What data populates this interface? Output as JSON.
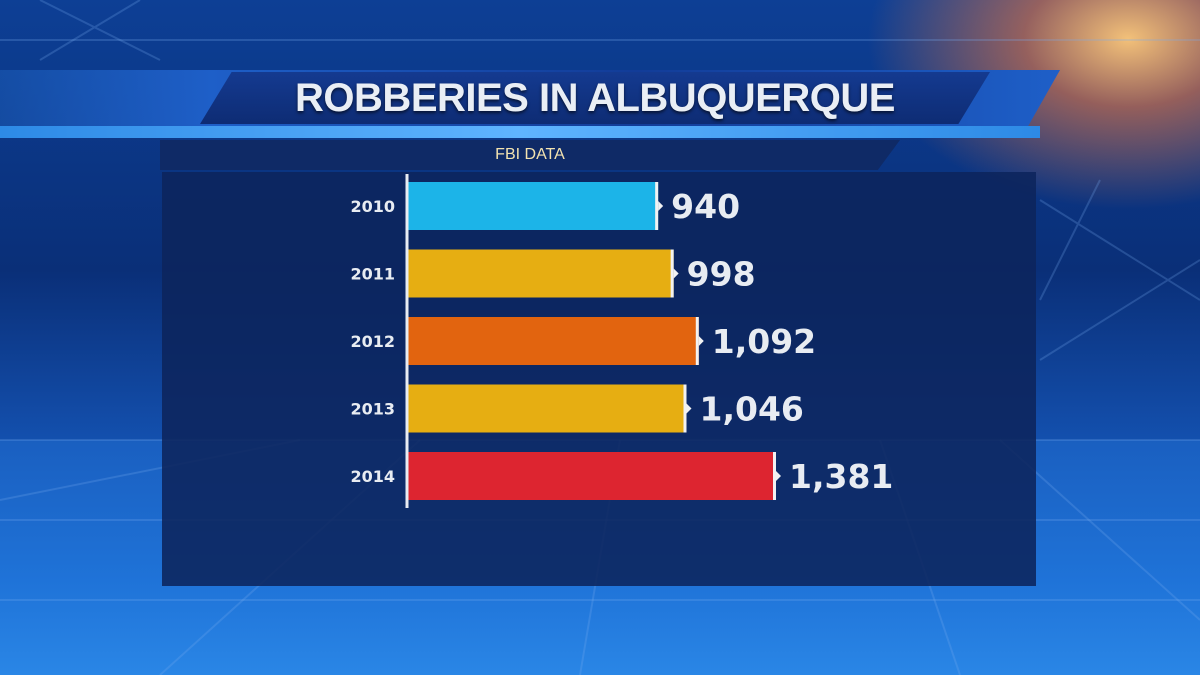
{
  "chart_data": {
    "type": "bar",
    "orientation": "horizontal",
    "title": "ROBBERIES IN ALBUQUERQUE",
    "subtitle": "FBI DATA",
    "categories": [
      "2010",
      "2011",
      "2012",
      "2013",
      "2014"
    ],
    "values": [
      940,
      998,
      1092,
      1046,
      1381
    ],
    "value_labels": [
      "940",
      "998",
      "1,092",
      "1,046",
      "1,381"
    ],
    "colors": [
      "#1cb4e8",
      "#e6ae12",
      "#e2640f",
      "#e6ae12",
      "#dd2530"
    ],
    "xlim": [
      0,
      1381
    ],
    "grid": false,
    "legend": "none"
  }
}
